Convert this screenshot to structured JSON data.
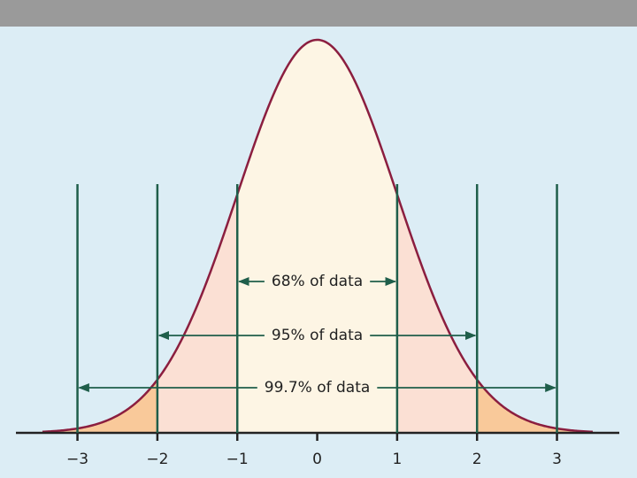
{
  "chart_data": {
    "type": "normal",
    "xlim": [
      -3.77,
      3.78
    ],
    "xticks": [
      {
        "value": -3,
        "label": "−3"
      },
      {
        "value": -2,
        "label": "−2"
      },
      {
        "value": -1,
        "label": "−1"
      },
      0,
      1,
      2,
      3
    ],
    "annotations": [
      "68% of data",
      "95% of data",
      "99.7% of data"
    ]
  }
}
